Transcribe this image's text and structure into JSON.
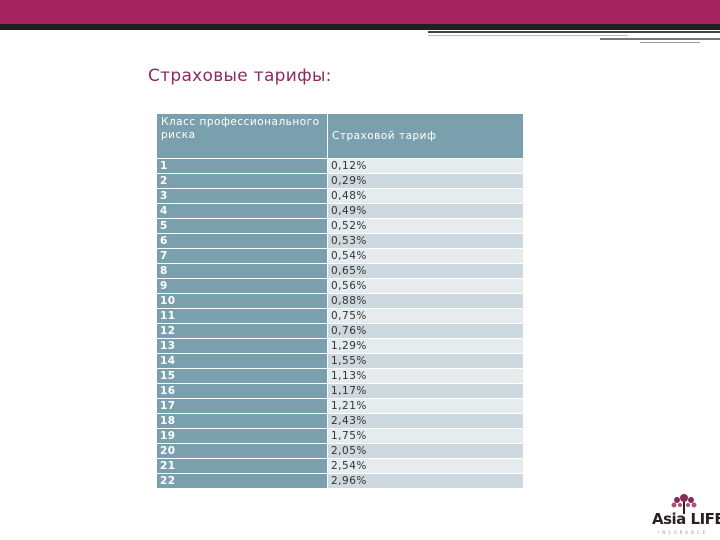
{
  "title": "Страховые тарифы:",
  "table": {
    "headers": [
      "Класс профессионального риска",
      "Страховой тариф"
    ],
    "rows": [
      [
        "1",
        "0,12%"
      ],
      [
        "2",
        "0,29%"
      ],
      [
        "3",
        "0,48%"
      ],
      [
        "4",
        "0,49%"
      ],
      [
        "5",
        "0,52%"
      ],
      [
        "6",
        "0,53%"
      ],
      [
        "7",
        "0,54%"
      ],
      [
        "8",
        "0,65%"
      ],
      [
        "9",
        "0,56%"
      ],
      [
        "10",
        "0,88%"
      ],
      [
        "11",
        "0,75%"
      ],
      [
        "12",
        "0,76%"
      ],
      [
        "13",
        "1,29%"
      ],
      [
        "14",
        "1,55%"
      ],
      [
        "15",
        "1,13%"
      ],
      [
        "16",
        "1,17%"
      ],
      [
        "17",
        "1,21%"
      ],
      [
        "18",
        "2,43%"
      ],
      [
        "19",
        "1,75%"
      ],
      [
        "20",
        "2,05%"
      ],
      [
        "21",
        "2,54%"
      ],
      [
        "22",
        "2,96%"
      ]
    ]
  },
  "logo": {
    "name": "Asia LIFE",
    "sub": "INSURANCE"
  },
  "colors": {
    "topbar": "#a4245f",
    "title": "#8d2a5c",
    "header": "#7aa0ad"
  }
}
